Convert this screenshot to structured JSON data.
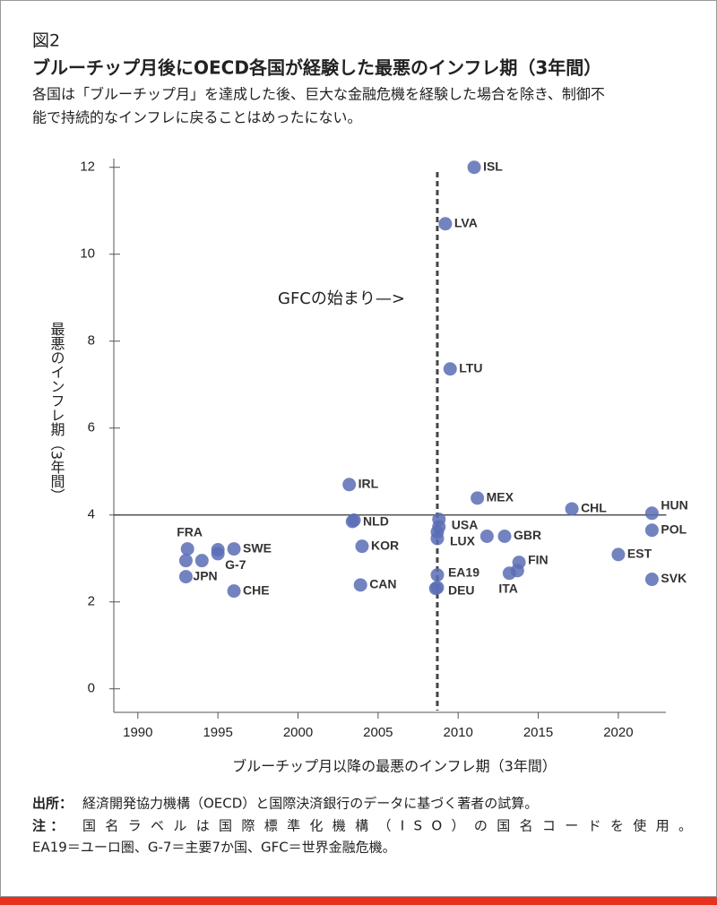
{
  "chart_data": {
    "type": "scatter",
    "figure_label": "図2",
    "title": "ブルーチップ月後にOECD各国が経験した最悪のインフレ期（3年間）",
    "subtitle": [
      "各国は「ブルーチップ月」を達成した後、巨大な金融危機を経験した場合を除き、制御不",
      "能で持続的なインフレに戻ることはめったにない。"
    ],
    "x_label": "ブルーチップ月以降の最悪のインフレ期（3年間）",
    "y_label": "最悪のインフレ期（3年間）",
    "annotation": "GFCの始まり—>",
    "vline": 2008.7,
    "hline": 4,
    "color": "#5a6db5",
    "xlim": [
      1988.5,
      2023
    ],
    "ylim": [
      -0.5,
      12.2
    ],
    "xticks": [
      1990,
      1995,
      2000,
      2005,
      2010,
      2015,
      2020
    ],
    "yticks": [
      0,
      2,
      4,
      6,
      8,
      10,
      12
    ],
    "x": [
      2011.0,
      2009.2,
      2009.5,
      2003.2,
      2003.5,
      2003.4,
      2004.0,
      2003.9,
      2011.2,
      2017.1,
      2022.1,
      2022.1,
      2020.0,
      2022.1,
      2012.9,
      2011.8,
      2013.8,
      2013.7,
      2013.2,
      2008.8,
      2008.8,
      2008.7,
      2008.7,
      2008.7,
      2008.7,
      2008.6,
      1993.1,
      1993.0,
      1994.0,
      1995.0,
      1995.0,
      1996.0,
      1993.0,
      1996.0
    ],
    "values": [
      12.0,
      10.7,
      7.36,
      4.7,
      3.88,
      3.85,
      3.28,
      2.39,
      4.39,
      4.14,
      4.04,
      3.65,
      3.09,
      2.52,
      3.51,
      3.51,
      2.91,
      2.72,
      2.66,
      3.9,
      3.73,
      3.61,
      3.46,
      2.62,
      2.33,
      2.31,
      3.22,
      2.95,
      2.95,
      3.2,
      3.11,
      3.22,
      2.58,
      2.25
    ],
    "labels": [
      "ISL",
      "LVA",
      "LTU",
      "IRL",
      "NLD",
      null,
      "KOR",
      "CAN",
      "MEX",
      "CHL",
      "HUN",
      "POL",
      "EST",
      "SVK",
      "GBR",
      null,
      "FIN",
      null,
      "ITA",
      "USA",
      null,
      "LUX",
      null,
      "EA19",
      "DEU",
      null,
      "FRA",
      null,
      null,
      "G-7",
      null,
      "SWE",
      "JPN",
      "CHE"
    ],
    "source_label": "出所：",
    "source": "経済開発協力機構（OECD）と国際決済銀行のデータに基づく著者の試算。",
    "note_label": "注 ：",
    "note": "国名ラベルは国際標準化機構（ISO）の国名コードを使用。",
    "note2": "EA19＝ユーロ圏、G-7＝主要7か国、GFC＝世界金融危機。"
  }
}
